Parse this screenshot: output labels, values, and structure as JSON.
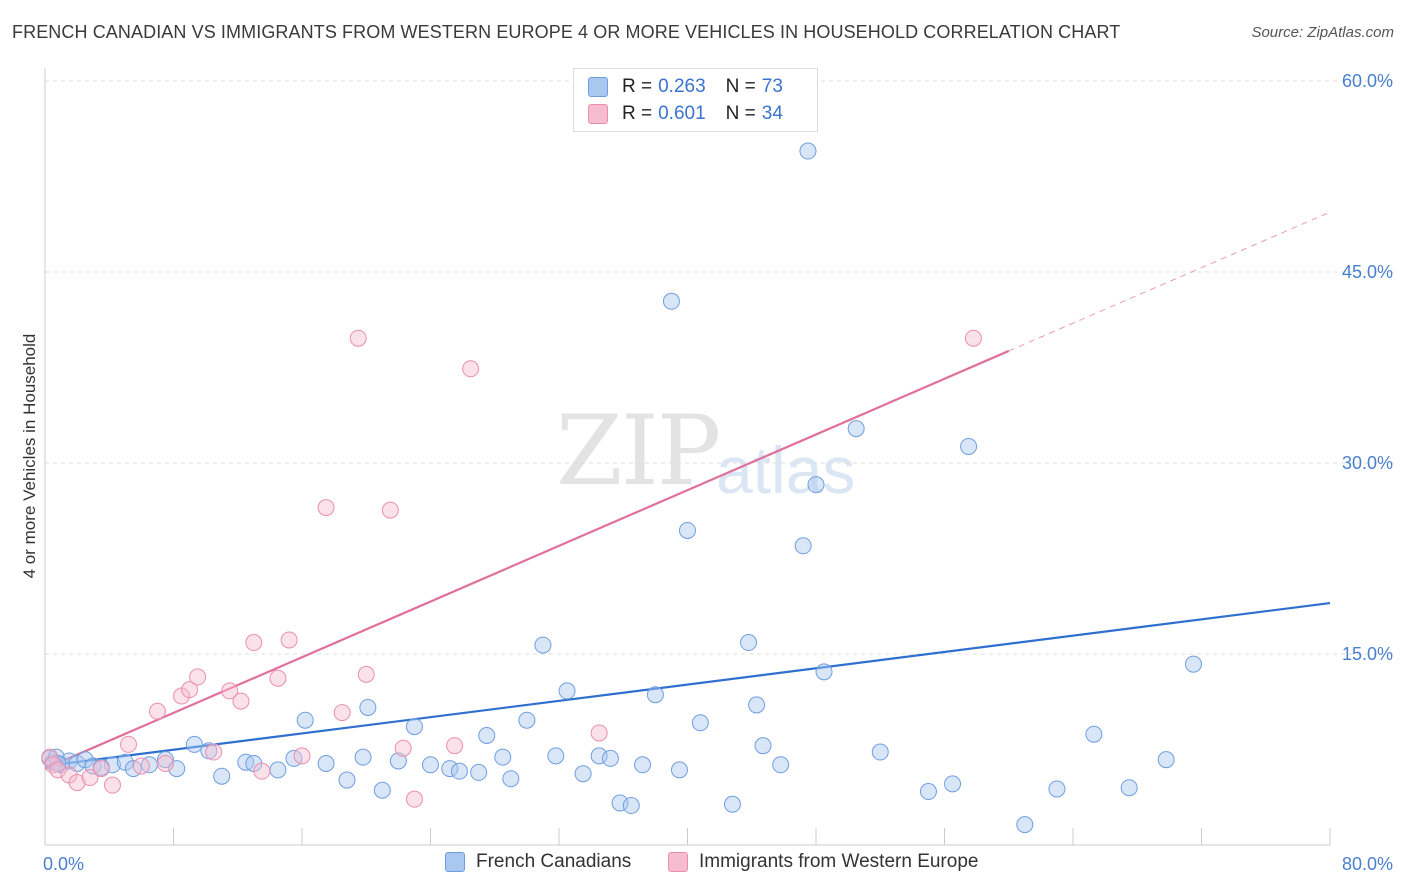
{
  "title": "FRENCH CANADIAN VS IMMIGRANTS FROM WESTERN EUROPE 4 OR MORE VEHICLES IN HOUSEHOLD CORRELATION CHART",
  "source": "Source: ZipAtlas.com",
  "watermark": {
    "zip": "ZIP",
    "atlas": "atlas"
  },
  "legend": {
    "rows": [
      {
        "r_label": "R =",
        "r_value": "0.263",
        "n_label": "N =",
        "n_value": "73"
      },
      {
        "r_label": "R =",
        "r_value": "0.601",
        "n_label": "N =",
        "n_value": "34"
      }
    ]
  },
  "colors": {
    "blue_fill": "#a9c8f0",
    "blue_stroke": "#6f9ee0",
    "blue_line": "#2e6fd0",
    "pink_fill": "#f7bcd0",
    "pink_stroke": "#ea8fae",
    "pink_line": "#e0709a",
    "grid": "#dddddd",
    "tick_text": "#4a7fd0"
  },
  "chart_data": {
    "type": "scatter",
    "title": "FRENCH CANADIAN VS IMMIGRANTS FROM WESTERN EUROPE 4 OR MORE VEHICLES IN HOUSEHOLD CORRELATION CHART",
    "xlabel": "",
    "ylabel": "4 or more Vehicles in Household",
    "xlim": [
      0,
      80
    ],
    "ylim": [
      0,
      60
    ],
    "x_tick_labels": [
      "0.0%",
      "80.0%"
    ],
    "y_ticks": [
      15,
      30,
      45,
      60
    ],
    "y_tick_labels": [
      "15.0%",
      "30.0%",
      "45.0%",
      "60.0%"
    ],
    "grid": true,
    "series": [
      {
        "name": "French Canadians",
        "r": 0.263,
        "n": 73,
        "trend": {
          "x0": 0,
          "y0": 6.2,
          "x1": 80,
          "y1": 19.0
        },
        "points": [
          [
            0.3,
            6.8
          ],
          [
            0.5,
            6.5
          ],
          [
            0.7,
            6.9
          ],
          [
            1.0,
            6.3
          ],
          [
            1.5,
            6.6
          ],
          [
            2.0,
            6.4
          ],
          [
            2.5,
            6.7
          ],
          [
            3.0,
            6.2
          ],
          [
            4.2,
            6.3
          ],
          [
            5.0,
            6.5
          ],
          [
            5.5,
            6.0
          ],
          [
            6.5,
            6.3
          ],
          [
            7.5,
            6.7
          ],
          [
            8.2,
            6.0
          ],
          [
            9.3,
            7.9
          ],
          [
            10.2,
            7.4
          ],
          [
            11.0,
            5.4
          ],
          [
            12.5,
            6.5
          ],
          [
            13.0,
            6.4
          ],
          [
            14.5,
            5.9
          ],
          [
            15.5,
            6.8
          ],
          [
            16.2,
            9.8
          ],
          [
            17.5,
            6.4
          ],
          [
            18.8,
            5.1
          ],
          [
            19.8,
            6.9
          ],
          [
            20.1,
            10.8
          ],
          [
            21.0,
            4.3
          ],
          [
            22.0,
            6.6
          ],
          [
            23.0,
            9.3
          ],
          [
            24.0,
            6.3
          ],
          [
            25.2,
            6.0
          ],
          [
            25.8,
            5.8
          ],
          [
            27.0,
            5.7
          ],
          [
            27.5,
            8.6
          ],
          [
            28.5,
            6.9
          ],
          [
            29.0,
            5.2
          ],
          [
            30.0,
            9.8
          ],
          [
            31.0,
            15.7
          ],
          [
            31.8,
            7.0
          ],
          [
            32.5,
            12.1
          ],
          [
            33.5,
            5.6
          ],
          [
            34.5,
            7.0
          ],
          [
            35.2,
            6.8
          ],
          [
            35.8,
            3.3
          ],
          [
            36.5,
            3.1
          ],
          [
            37.2,
            6.3
          ],
          [
            38.0,
            11.8
          ],
          [
            39.0,
            42.7
          ],
          [
            39.5,
            5.9
          ],
          [
            40.0,
            24.7
          ],
          [
            40.8,
            9.6
          ],
          [
            42.8,
            3.2
          ],
          [
            43.8,
            15.9
          ],
          [
            44.3,
            11.0
          ],
          [
            44.7,
            7.8
          ],
          [
            45.8,
            6.3
          ],
          [
            47.2,
            23.5
          ],
          [
            47.5,
            54.5
          ],
          [
            48.0,
            28.3
          ],
          [
            48.5,
            13.6
          ],
          [
            50.5,
            32.7
          ],
          [
            52.0,
            7.3
          ],
          [
            55.0,
            4.2
          ],
          [
            56.5,
            4.8
          ],
          [
            57.5,
            31.3
          ],
          [
            61.0,
            1.6
          ],
          [
            63.0,
            4.4
          ],
          [
            65.3,
            8.7
          ],
          [
            67.5,
            4.5
          ],
          [
            69.8,
            6.7
          ],
          [
            71.5,
            14.2
          ],
          [
            0.8,
            6.4
          ],
          [
            3.5,
            6.1
          ]
        ]
      },
      {
        "name": "Immigrants from Western Europe",
        "r": 0.601,
        "n": 34,
        "trend": {
          "x0": 0,
          "y0": 6.0,
          "x1": 60,
          "y1": 38.8,
          "dashed_to_x": 80,
          "dashed_to_y": 49.7
        },
        "points": [
          [
            0.3,
            6.9
          ],
          [
            0.5,
            6.3
          ],
          [
            0.8,
            5.9
          ],
          [
            1.5,
            5.5
          ],
          [
            2.0,
            4.9
          ],
          [
            2.8,
            5.3
          ],
          [
            3.5,
            6.0
          ],
          [
            4.2,
            4.7
          ],
          [
            5.2,
            7.9
          ],
          [
            6.0,
            6.2
          ],
          [
            7.0,
            10.5
          ],
          [
            7.5,
            6.4
          ],
          [
            8.5,
            11.7
          ],
          [
            9.0,
            12.2
          ],
          [
            9.5,
            13.2
          ],
          [
            10.5,
            7.3
          ],
          [
            11.5,
            12.1
          ],
          [
            12.2,
            11.3
          ],
          [
            13.0,
            15.9
          ],
          [
            13.5,
            5.8
          ],
          [
            14.5,
            13.1
          ],
          [
            15.2,
            16.1
          ],
          [
            16.0,
            7.0
          ],
          [
            17.5,
            26.5
          ],
          [
            18.5,
            10.4
          ],
          [
            19.5,
            39.8
          ],
          [
            20.0,
            13.4
          ],
          [
            21.5,
            26.3
          ],
          [
            22.3,
            7.6
          ],
          [
            23.0,
            3.6
          ],
          [
            25.5,
            7.8
          ],
          [
            26.5,
            37.4
          ],
          [
            34.5,
            8.8
          ],
          [
            57.8,
            39.8
          ]
        ]
      }
    ]
  }
}
